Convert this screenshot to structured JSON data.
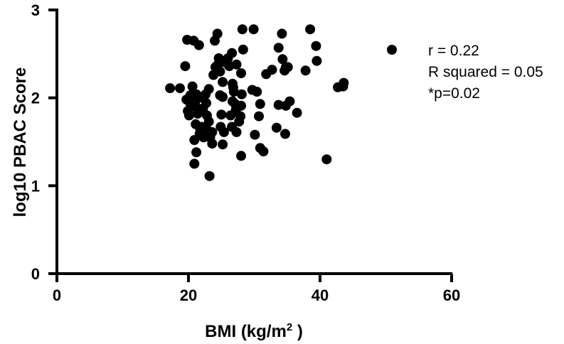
{
  "chart_data": {
    "type": "scatter",
    "xlabel": "BMI (kg/m",
    "xlabel_sup": "2",
    "xlabel_suffix": " )",
    "ylabel": "log10 PBAC Score",
    "xlim": [
      0,
      60
    ],
    "ylim": [
      0,
      3
    ],
    "xticks": [
      0,
      20,
      40,
      60
    ],
    "yticks": [
      0,
      1,
      2,
      3
    ],
    "grid": false,
    "marker_color": "#000000",
    "annotations": [
      "r = 0.22",
      "R squared = 0.05",
      "*p=0.02"
    ],
    "legend_marker": true,
    "points": [
      [
        17.2,
        2.11
      ],
      [
        18.7,
        2.11
      ],
      [
        19.5,
        2.36
      ],
      [
        19.8,
        2.66
      ],
      [
        20.3,
        2.03
      ],
      [
        19.7,
        1.98
      ],
      [
        19.9,
        1.85
      ],
      [
        20.1,
        1.8
      ],
      [
        20.3,
        1.93
      ],
      [
        20.6,
        2.13
      ],
      [
        20.8,
        2.65
      ],
      [
        20.6,
        2.01
      ],
      [
        21.0,
        1.95
      ],
      [
        21.2,
        2.04
      ],
      [
        21.2,
        1.89
      ],
      [
        21.4,
        1.82
      ],
      [
        21.6,
        2.6
      ],
      [
        21.6,
        2.0
      ],
      [
        21.1,
        1.7
      ],
      [
        21.8,
        1.64
      ],
      [
        21.7,
        1.59
      ],
      [
        22.0,
        1.67
      ],
      [
        22.3,
        1.55
      ],
      [
        20.9,
        1.52
      ],
      [
        21.2,
        1.38
      ],
      [
        20.9,
        1.25
      ],
      [
        22.2,
        1.88
      ],
      [
        22.6,
        2.04
      ],
      [
        22.7,
        1.94
      ],
      [
        22.8,
        1.8
      ],
      [
        23.1,
        1.73
      ],
      [
        22.7,
        1.65
      ],
      [
        23.3,
        1.55
      ],
      [
        23.6,
        1.61
      ],
      [
        23.6,
        1.48
      ],
      [
        23.2,
        1.11
      ],
      [
        23.1,
        2.1
      ],
      [
        23.8,
        2.26
      ],
      [
        24.1,
        2.35
      ],
      [
        24.5,
        2.38
      ],
      [
        24.0,
        2.65
      ],
      [
        24.4,
        2.73
      ],
      [
        24.6,
        2.45
      ],
      [
        24.8,
        2.3
      ],
      [
        24.8,
        2.03
      ],
      [
        25.2,
        2.18
      ],
      [
        25.2,
        2.01
      ],
      [
        25.0,
        1.81
      ],
      [
        24.9,
        1.67
      ],
      [
        25.4,
        1.61
      ],
      [
        25.2,
        1.47
      ],
      [
        25.7,
        2.4
      ],
      [
        26.0,
        2.45
      ],
      [
        26.2,
        2.36
      ],
      [
        26.6,
        2.51
      ],
      [
        27.3,
        2.38
      ],
      [
        26.7,
        2.16
      ],
      [
        26.9,
        2.07
      ],
      [
        26.7,
        1.96
      ],
      [
        26.4,
        1.8
      ],
      [
        26.6,
        1.67
      ],
      [
        27.2,
        1.86
      ],
      [
        27.3,
        1.61
      ],
      [
        27.7,
        1.73
      ],
      [
        27.9,
        1.79
      ],
      [
        28.0,
        1.91
      ],
      [
        28.1,
        2.04
      ],
      [
        28.0,
        2.28
      ],
      [
        28.2,
        2.78
      ],
      [
        28.3,
        2.55
      ],
      [
        27.1,
        1.93
      ],
      [
        26.8,
        2.12
      ],
      [
        28.0,
        1.34
      ],
      [
        29.7,
        2.09
      ],
      [
        29.9,
        2.78
      ],
      [
        30.1,
        1.58
      ],
      [
        30.4,
        2.07
      ],
      [
        30.7,
        1.79
      ],
      [
        30.9,
        1.93
      ],
      [
        30.9,
        1.43
      ],
      [
        31.4,
        1.39
      ],
      [
        31.8,
        2.27
      ],
      [
        32.7,
        2.32
      ],
      [
        33.4,
        1.66
      ],
      [
        33.7,
        1.92
      ],
      [
        33.7,
        2.57
      ],
      [
        34.2,
        2.73
      ],
      [
        34.3,
        2.44
      ],
      [
        34.6,
        2.31
      ],
      [
        34.8,
        2.35
      ],
      [
        35.1,
        2.35
      ],
      [
        35.4,
        1.96
      ],
      [
        34.7,
        1.59
      ],
      [
        34.8,
        1.91
      ],
      [
        36.5,
        1.83
      ],
      [
        37.8,
        2.31
      ],
      [
        38.5,
        2.78
      ],
      [
        39.4,
        2.59
      ],
      [
        39.5,
        2.42
      ],
      [
        41.0,
        1.3
      ],
      [
        42.7,
        2.12
      ],
      [
        43.5,
        2.13
      ],
      [
        43.6,
        2.17
      ]
    ]
  }
}
